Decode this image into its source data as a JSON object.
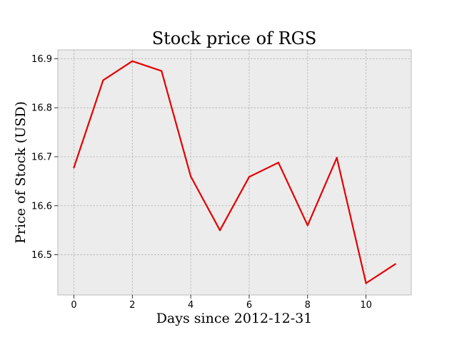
{
  "chart_data": {
    "type": "line",
    "title": "Stock price of RGS",
    "xlabel": "Days since 2012-12-31",
    "ylabel": "Price of Stock (USD)",
    "x": [
      0,
      1,
      2,
      3,
      4,
      5,
      6,
      7,
      8,
      9,
      10,
      11
    ],
    "series": [
      {
        "values": [
          16.678,
          16.856,
          16.895,
          16.875,
          16.66,
          16.55,
          16.659,
          16.688,
          16.56,
          16.698,
          16.442,
          16.481
        ],
        "color": "#e50000"
      }
    ],
    "xlim": [
      -0.55,
      11.55
    ],
    "ylim": [
      16.418,
      16.918
    ],
    "xticks": [
      0,
      2,
      4,
      6,
      8,
      10
    ],
    "yticks": [
      16.5,
      16.6,
      16.7,
      16.8,
      16.9
    ],
    "xtick_labels": [
      "0",
      "2",
      "4",
      "6",
      "8",
      "10"
    ],
    "ytick_labels": [
      "16.5",
      "16.6",
      "16.7",
      "16.8",
      "16.9"
    ],
    "grid": true,
    "background": "#ececec"
  }
}
